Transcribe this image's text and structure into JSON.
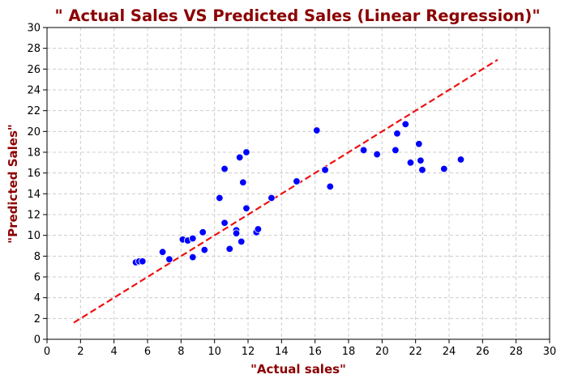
{
  "chart_data": {
    "type": "scatter",
    "title": "\" Actual Sales VS Predicted Sales (Linear Regression)\"",
    "xlabel": "\"Actual sales\"",
    "ylabel": "\"Predicted Sales\"",
    "xlim": [
      0,
      30
    ],
    "ylim": [
      0,
      30
    ],
    "xticks": [
      0,
      2,
      4,
      6,
      8,
      10,
      12,
      14,
      16,
      18,
      20,
      22,
      24,
      26,
      28,
      30
    ],
    "yticks": [
      0,
      2,
      4,
      6,
      8,
      10,
      12,
      14,
      16,
      18,
      20,
      22,
      24,
      26,
      28,
      30
    ],
    "grid": true,
    "colors": {
      "points": "#0000ff",
      "fit_line": "#ee1111",
      "title": "#8b0000",
      "axis_labels": "#8b0000",
      "grid": "#cccccc"
    },
    "points": [
      {
        "x": 5.3,
        "y": 7.4
      },
      {
        "x": 5.5,
        "y": 7.5
      },
      {
        "x": 5.7,
        "y": 7.5
      },
      {
        "x": 6.9,
        "y": 8.4
      },
      {
        "x": 7.3,
        "y": 7.7
      },
      {
        "x": 8.1,
        "y": 9.6
      },
      {
        "x": 8.4,
        "y": 9.5
      },
      {
        "x": 8.7,
        "y": 9.7
      },
      {
        "x": 8.7,
        "y": 7.9
      },
      {
        "x": 9.3,
        "y": 10.3
      },
      {
        "x": 9.4,
        "y": 8.6
      },
      {
        "x": 10.3,
        "y": 13.6
      },
      {
        "x": 10.6,
        "y": 16.4
      },
      {
        "x": 10.6,
        "y": 11.2
      },
      {
        "x": 10.9,
        "y": 8.7
      },
      {
        "x": 11.3,
        "y": 10.5
      },
      {
        "x": 11.3,
        "y": 10.2
      },
      {
        "x": 11.5,
        "y": 17.5
      },
      {
        "x": 11.6,
        "y": 9.4
      },
      {
        "x": 11.7,
        "y": 15.1
      },
      {
        "x": 11.9,
        "y": 18.0
      },
      {
        "x": 11.9,
        "y": 12.6
      },
      {
        "x": 12.5,
        "y": 10.3
      },
      {
        "x": 12.6,
        "y": 10.6
      },
      {
        "x": 13.4,
        "y": 13.6
      },
      {
        "x": 14.9,
        "y": 15.2
      },
      {
        "x": 16.1,
        "y": 20.1
      },
      {
        "x": 16.6,
        "y": 16.3
      },
      {
        "x": 16.9,
        "y": 14.7
      },
      {
        "x": 18.9,
        "y": 18.2
      },
      {
        "x": 19.7,
        "y": 17.8
      },
      {
        "x": 20.8,
        "y": 18.2
      },
      {
        "x": 20.9,
        "y": 19.8
      },
      {
        "x": 21.4,
        "y": 20.7
      },
      {
        "x": 21.7,
        "y": 17.0
      },
      {
        "x": 22.2,
        "y": 18.8
      },
      {
        "x": 22.3,
        "y": 17.2
      },
      {
        "x": 22.4,
        "y": 16.3
      },
      {
        "x": 23.7,
        "y": 16.4
      },
      {
        "x": 24.7,
        "y": 17.3
      }
    ],
    "fit_line": {
      "x": [
        1.6,
        26.9
      ],
      "y": [
        1.6,
        26.9
      ],
      "style": "dashed"
    }
  }
}
